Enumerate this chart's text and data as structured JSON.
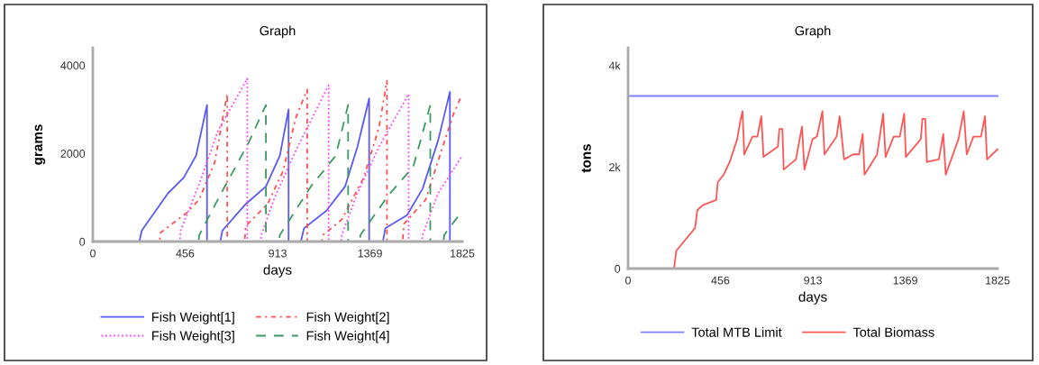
{
  "chart_data": [
    {
      "type": "line",
      "title": "Graph",
      "xlabel": "days",
      "ylabel": "grams",
      "xlim": [
        0,
        1825
      ],
      "xticks": [
        0,
        456,
        913,
        1369,
        1825
      ],
      "ylim": [
        0,
        4400
      ],
      "yticks": [
        0,
        2000,
        4000
      ],
      "grid": false,
      "legend": "bottom",
      "marker": "none",
      "series": [
        {
          "name": "Fish Weight[1]",
          "color": "#5a5af5",
          "line_style": "solid",
          "x": [
            0,
            230,
            242,
            372,
            449,
            510,
            564,
            564,
            630,
            640,
            755,
            855,
            924,
            967,
            967,
            1028,
            1043,
            1154,
            1246,
            1307,
            1365,
            1365,
            1433,
            1445,
            1552,
            1629,
            1706,
            1764,
            1764,
            1825
          ],
          "values": [
            0,
            0,
            250,
            1100,
            1450,
            1950,
            3100,
            0,
            0,
            250,
            850,
            1250,
            1950,
            3000,
            0,
            0,
            300,
            700,
            1250,
            2150,
            3250,
            0,
            0,
            300,
            600,
            1200,
            2300,
            3400,
            0,
            0
          ]
        },
        {
          "name": "Fish Weight[2]",
          "color": "#ff5050",
          "line_style": "dashdot",
          "x": [
            0,
            330,
            334,
            464,
            525,
            602,
            664,
            664,
            750,
            755,
            863,
            940,
            1002,
            1059,
            1059,
            1130,
            1138,
            1230,
            1338,
            1414,
            1453,
            1453,
            1530,
            1537,
            1644,
            1721,
            1782,
            1820
          ],
          "values": [
            0,
            0,
            200,
            650,
            950,
            1800,
            3350,
            0,
            0,
            350,
            850,
            1600,
            2800,
            3450,
            0,
            0,
            150,
            500,
            1450,
            2600,
            3650,
            0,
            0,
            400,
            950,
            2050,
            2900,
            3300
          ]
        },
        {
          "name": "Fish Weight[3]",
          "color": "#ff44ff",
          "line_style": "dotted",
          "x": [
            0,
            430,
            434,
            525,
            617,
            763,
            763,
            828,
            832,
            894,
            1001,
            1165,
            1165,
            1226,
            1230,
            1307,
            1414,
            1560,
            1560,
            1625,
            1629,
            1706,
            1825
          ],
          "values": [
            0,
            0,
            250,
            1300,
            2500,
            3700,
            0,
            0,
            150,
            950,
            2050,
            3550,
            0,
            0,
            150,
            1100,
            2150,
            3350,
            0,
            0,
            150,
            1100,
            1950
          ]
        },
        {
          "name": "Fish Weight[4]",
          "color": "#3a9a60",
          "line_style": "dashed",
          "x": [
            0,
            522,
            526,
            617,
            770,
            855,
            855,
            920,
            924,
            1077,
            1200,
            1261,
            1261,
            1318,
            1322,
            1460,
            1583,
            1667,
            1667,
            1732,
            1736,
            1825
          ],
          "values": [
            0,
            0,
            150,
            950,
            2250,
            3100,
            0,
            0,
            150,
            1250,
            1950,
            3100,
            0,
            0,
            150,
            1050,
            1700,
            3100,
            0,
            0,
            150,
            700
          ]
        }
      ]
    },
    {
      "type": "line",
      "title": "Graph",
      "xlabel": "days",
      "ylabel": "tons",
      "xlim": [
        0,
        1825
      ],
      "xticks": [
        0,
        456,
        913,
        1369,
        1825
      ],
      "ylim": [
        0,
        4350
      ],
      "yticks": [
        0,
        {
          "value": 2000,
          "label": "2k"
        },
        {
          "value": 4000,
          "label": "4k"
        }
      ],
      "grid": false,
      "legend": "bottom",
      "marker": "none",
      "series": [
        {
          "name": "Total MTB Limit",
          "color": "#8080ff",
          "line_style": "solid",
          "x": [
            0,
            1825
          ],
          "values": [
            3400,
            3400
          ]
        },
        {
          "name": "Total Biomass",
          "color": "#ff5555",
          "line_style": "solid",
          "x": [
            0,
            227,
            238,
            331,
            342,
            369,
            435,
            443,
            472,
            502,
            539,
            554,
            565,
            574,
            614,
            639,
            658,
            669,
            740,
            747,
            762,
            769,
            829,
            859,
            871,
            911,
            933,
            960,
            970,
            1030,
            1045,
            1067,
            1112,
            1141,
            1159,
            1168,
            1230,
            1260,
            1272,
            1312,
            1342,
            1364,
            1372,
            1446,
            1454,
            1468,
            1476,
            1535,
            1557,
            1569,
            1632,
            1658,
            1673,
            1706,
            1743,
            1763,
            1773,
            1825
          ],
          "values": [
            0,
            0,
            350,
            800,
            1150,
            1250,
            1350,
            1700,
            1850,
            2100,
            2550,
            2900,
            3100,
            2250,
            2600,
            2600,
            3000,
            2200,
            2400,
            2750,
            2750,
            1950,
            2150,
            2800,
            1950,
            2550,
            2600,
            3100,
            2250,
            2600,
            3000,
            2150,
            2250,
            2250,
            2650,
            1850,
            2250,
            3050,
            2200,
            2600,
            2600,
            3050,
            2200,
            2550,
            2950,
            2950,
            2100,
            2150,
            2650,
            1850,
            2550,
            3100,
            2250,
            2600,
            2600,
            3000,
            2150,
            2350
          ]
        }
      ]
    }
  ]
}
